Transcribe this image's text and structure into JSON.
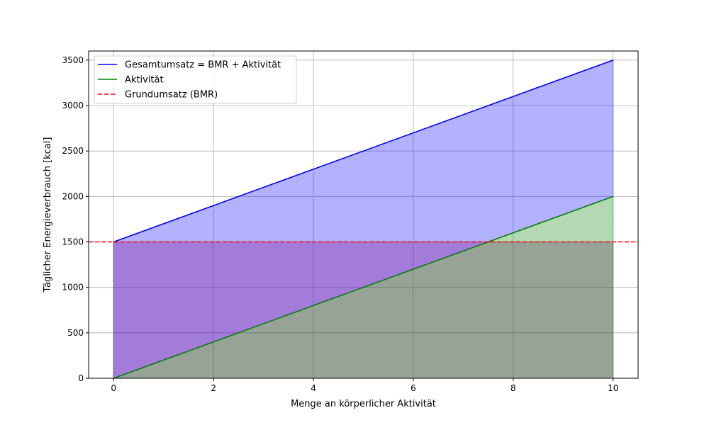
{
  "chart_data": {
    "type": "line",
    "xlabel": "Menge an körperlicher Aktivität",
    "ylabel": "Täglicher Energieverbrauch [kcal]",
    "xlim": [
      -0.5,
      10.5
    ],
    "ylim": [
      0,
      3600
    ],
    "xticks": [
      0,
      2,
      4,
      6,
      8,
      10
    ],
    "yticks": [
      0,
      500,
      1000,
      1500,
      2000,
      2500,
      3000,
      3500
    ],
    "grid": true,
    "legend_position": "top-left",
    "series": [
      {
        "name": "Gesamtumsatz = BMR + Aktivität",
        "style": "solid",
        "color": "#0000ff",
        "x": [
          0,
          10
        ],
        "y": [
          1500,
          3500
        ]
      },
      {
        "name": "Aktivität",
        "style": "solid",
        "color": "#008000",
        "x": [
          0,
          10
        ],
        "y": [
          0,
          2000
        ]
      },
      {
        "name": "Grundumsatz (BMR)",
        "style": "dashed",
        "color": "#ff0000",
        "y_constant": 1500
      }
    ],
    "fills": [
      {
        "between": "Aktivität-to-Gesamtumsatz",
        "color": "#0000ff",
        "opacity": 0.3
      },
      {
        "between": "zero-to-BMR",
        "color": "#800080",
        "opacity": 0.3
      },
      {
        "between": "zero-to-Aktivität",
        "color": "#008000",
        "opacity": 0.3
      }
    ]
  }
}
